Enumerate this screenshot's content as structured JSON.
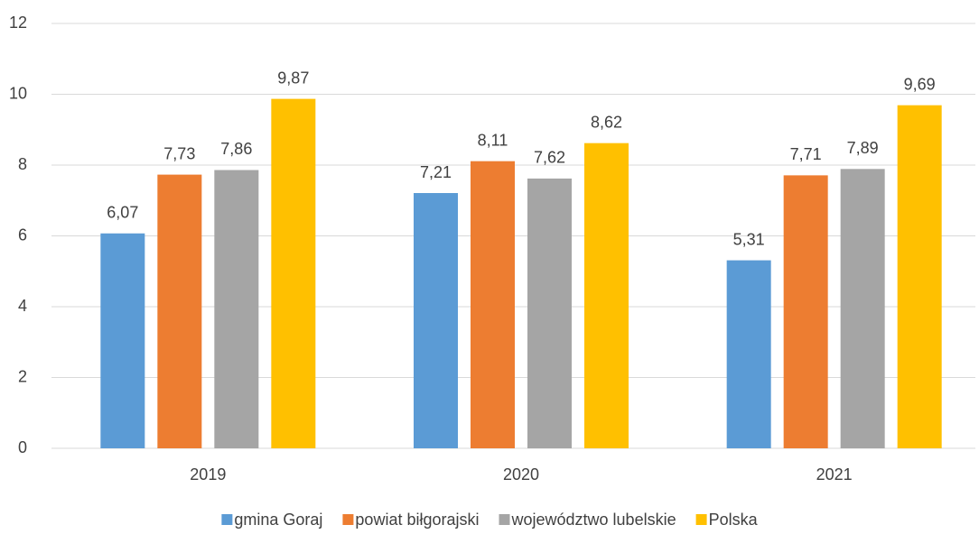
{
  "chart_data": {
    "type": "bar",
    "categories": [
      "2019",
      "2020",
      "2021"
    ],
    "series": [
      {
        "name": "gmina Goraj",
        "color": "#5b9bd5",
        "values": [
          6.07,
          7.21,
          5.31
        ],
        "value_labels": [
          "6,07",
          "7,21",
          "5,31"
        ]
      },
      {
        "name": "powiat biłgorajski",
        "color": "#ed7d31",
        "values": [
          7.73,
          8.11,
          7.71
        ],
        "value_labels": [
          "7,73",
          "8,11",
          "7,71"
        ]
      },
      {
        "name": "województwo lubelskie",
        "color": "#a5a5a5",
        "values": [
          7.86,
          7.62,
          7.89
        ],
        "value_labels": [
          "7,86",
          "7,62",
          "7,89"
        ]
      },
      {
        "name": "Polska",
        "color": "#ffc000",
        "values": [
          9.87,
          8.62,
          9.69
        ],
        "value_labels": [
          "9,87",
          "8,62",
          "9,69"
        ]
      }
    ],
    "ylim": [
      0,
      12
    ],
    "yticks": [
      0,
      2,
      4,
      6,
      8,
      10,
      12
    ],
    "grid": true,
    "legend": "bottom"
  }
}
